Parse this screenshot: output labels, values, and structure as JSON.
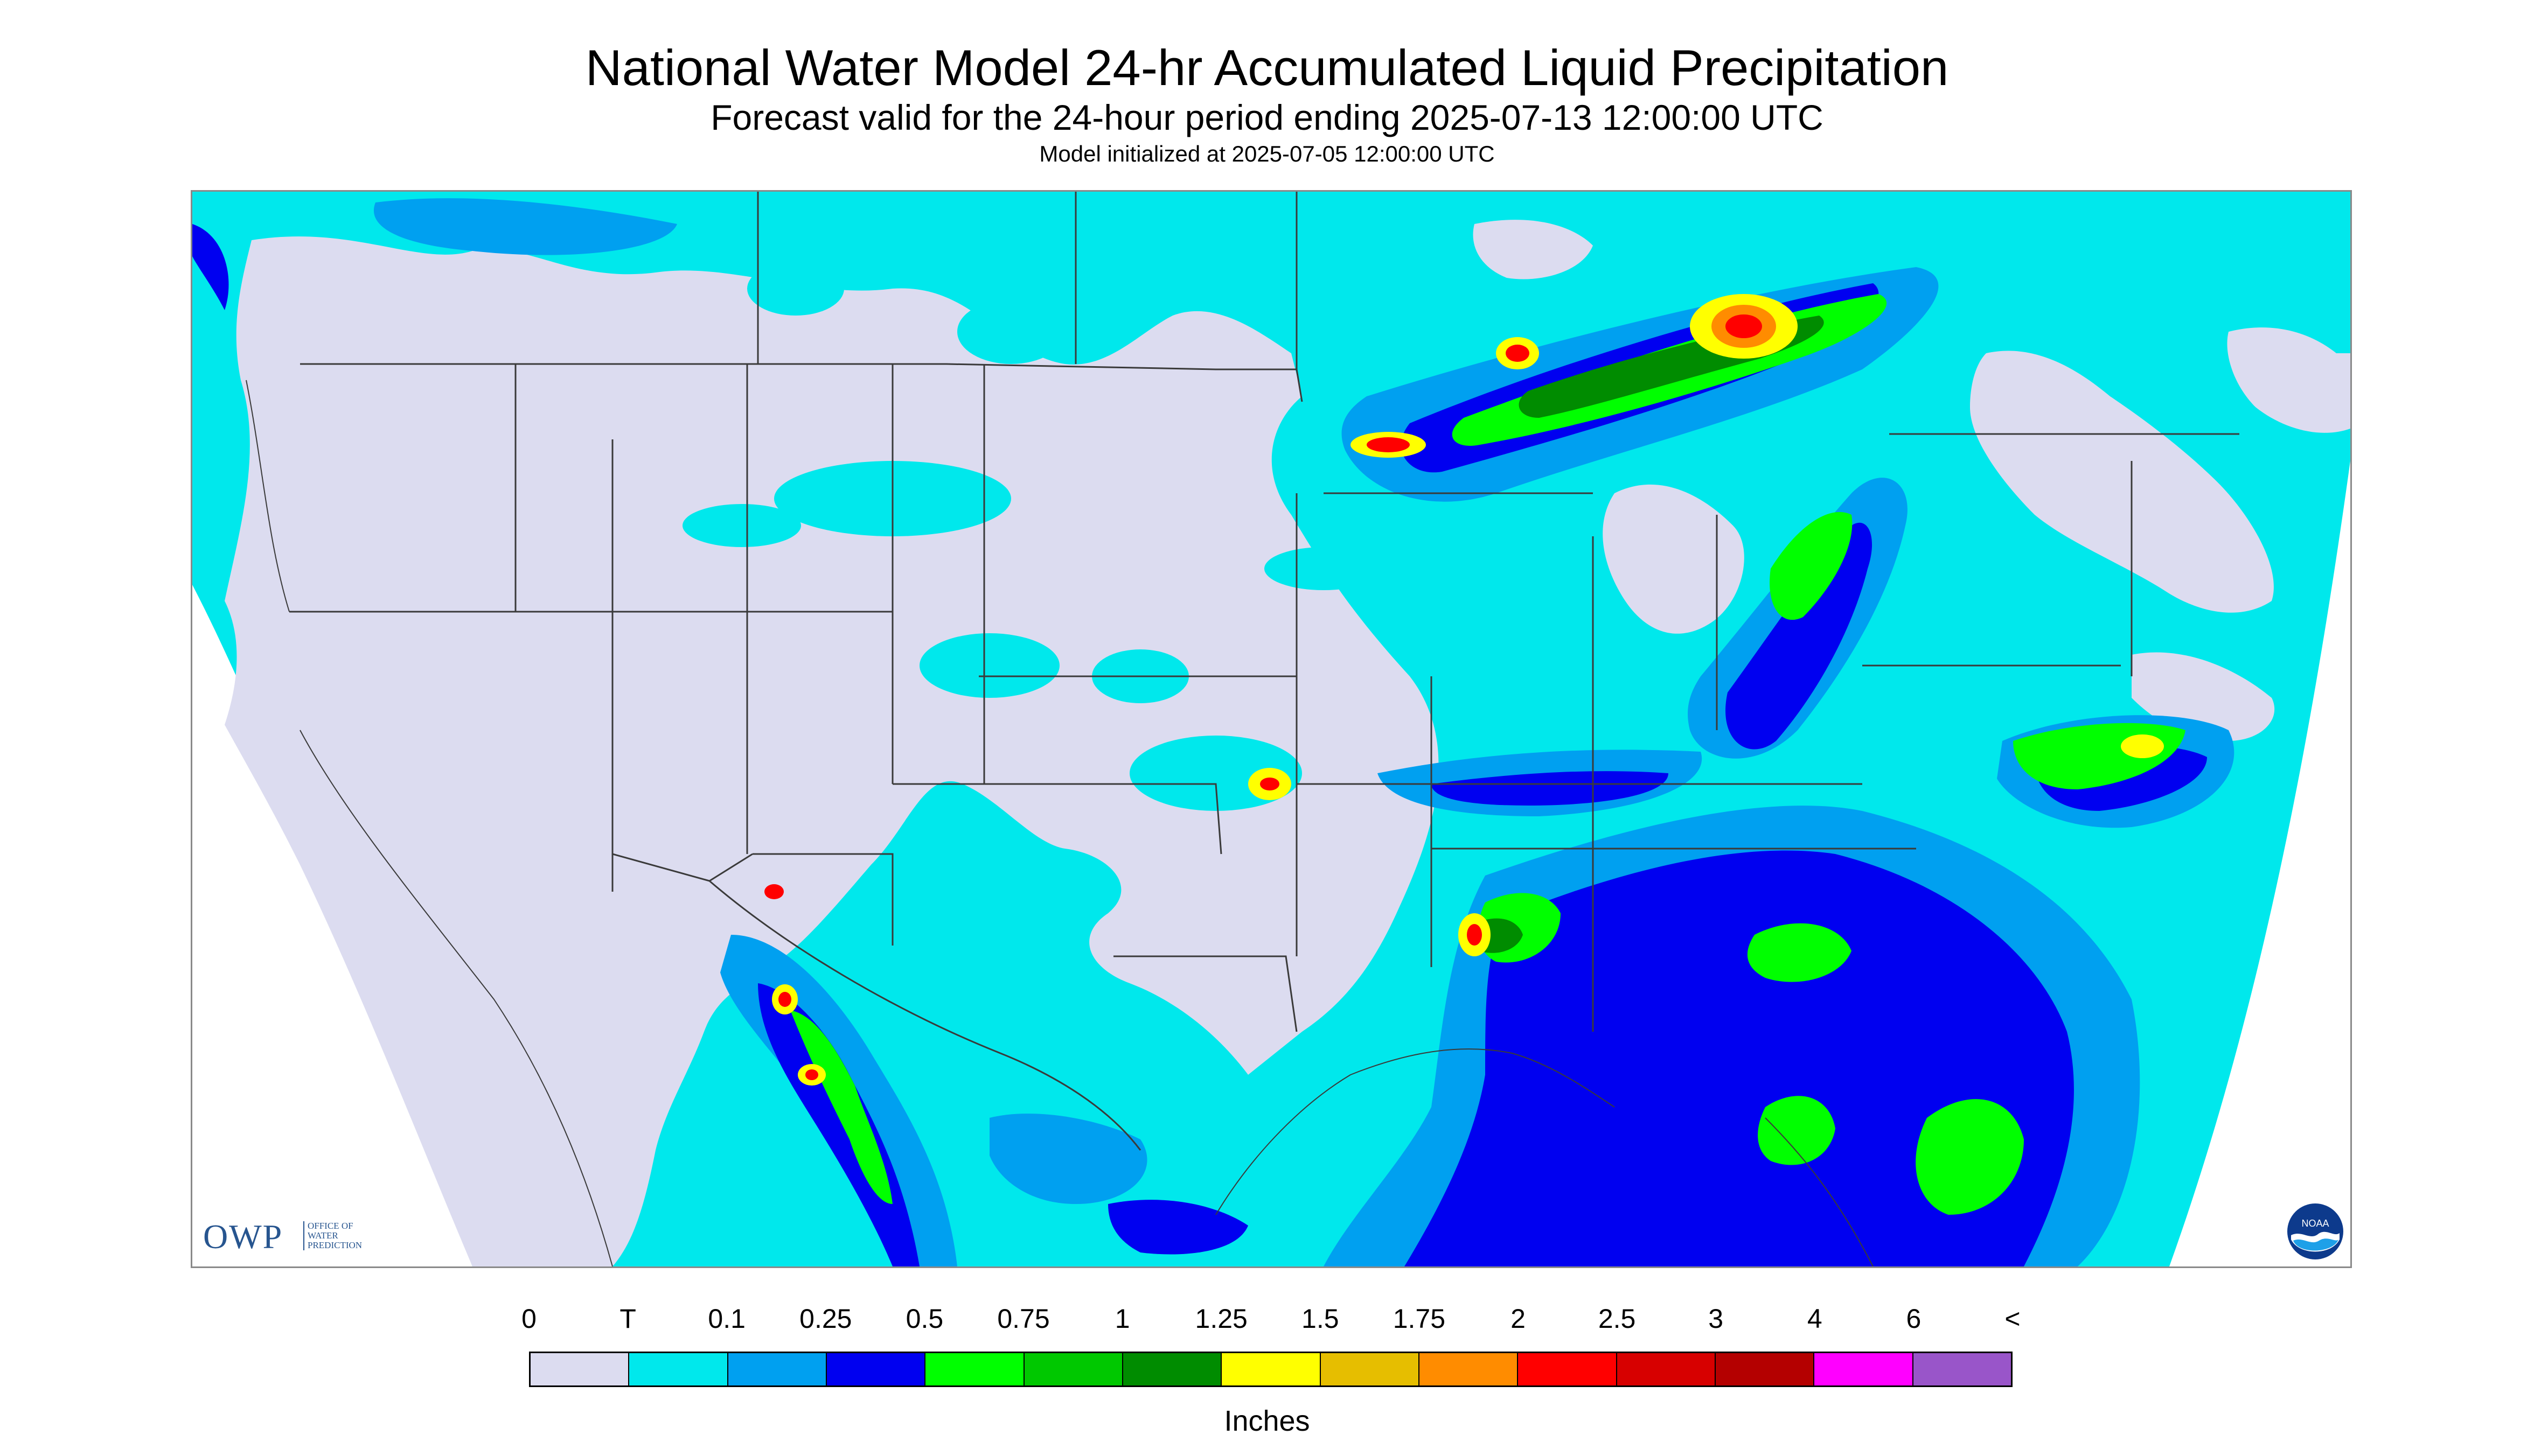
{
  "title": "National Water Model 24-hr Accumulated Liquid Precipitation",
  "subtitle": "Forecast valid for the 24-hour period ending 2025-07-13 12:00:00 UTC",
  "init_text": "Model initialized at 2025-07-05 12:00:00 UTC",
  "logo": {
    "owp_letters": "OWP",
    "owp_sub": [
      "OFFICE OF",
      "WATER",
      "PREDICTION"
    ],
    "noaa": "NOAA"
  },
  "legend": {
    "units": "Inches",
    "labels": [
      "0",
      "T",
      "0.1",
      "0.25",
      "0.5",
      "0.75",
      "1",
      "1.25",
      "1.5",
      "1.75",
      "2",
      "2.5",
      "3",
      "4",
      "6",
      "<"
    ],
    "colors": [
      "#dcdcf0",
      "#00e8ec",
      "#00a0f0",
      "#0000f0",
      "#00ff00",
      "#00c800",
      "#008c00",
      "#ffff00",
      "#e6be00",
      "#ff8c00",
      "#ff0000",
      "#d70000",
      "#b40000",
      "#ff00ff",
      "#9955c9"
    ]
  },
  "colors": {
    "land_trace": "#00e8ec",
    "dry": "#dcdcf0",
    "border_line": "#3a3a3a"
  }
}
